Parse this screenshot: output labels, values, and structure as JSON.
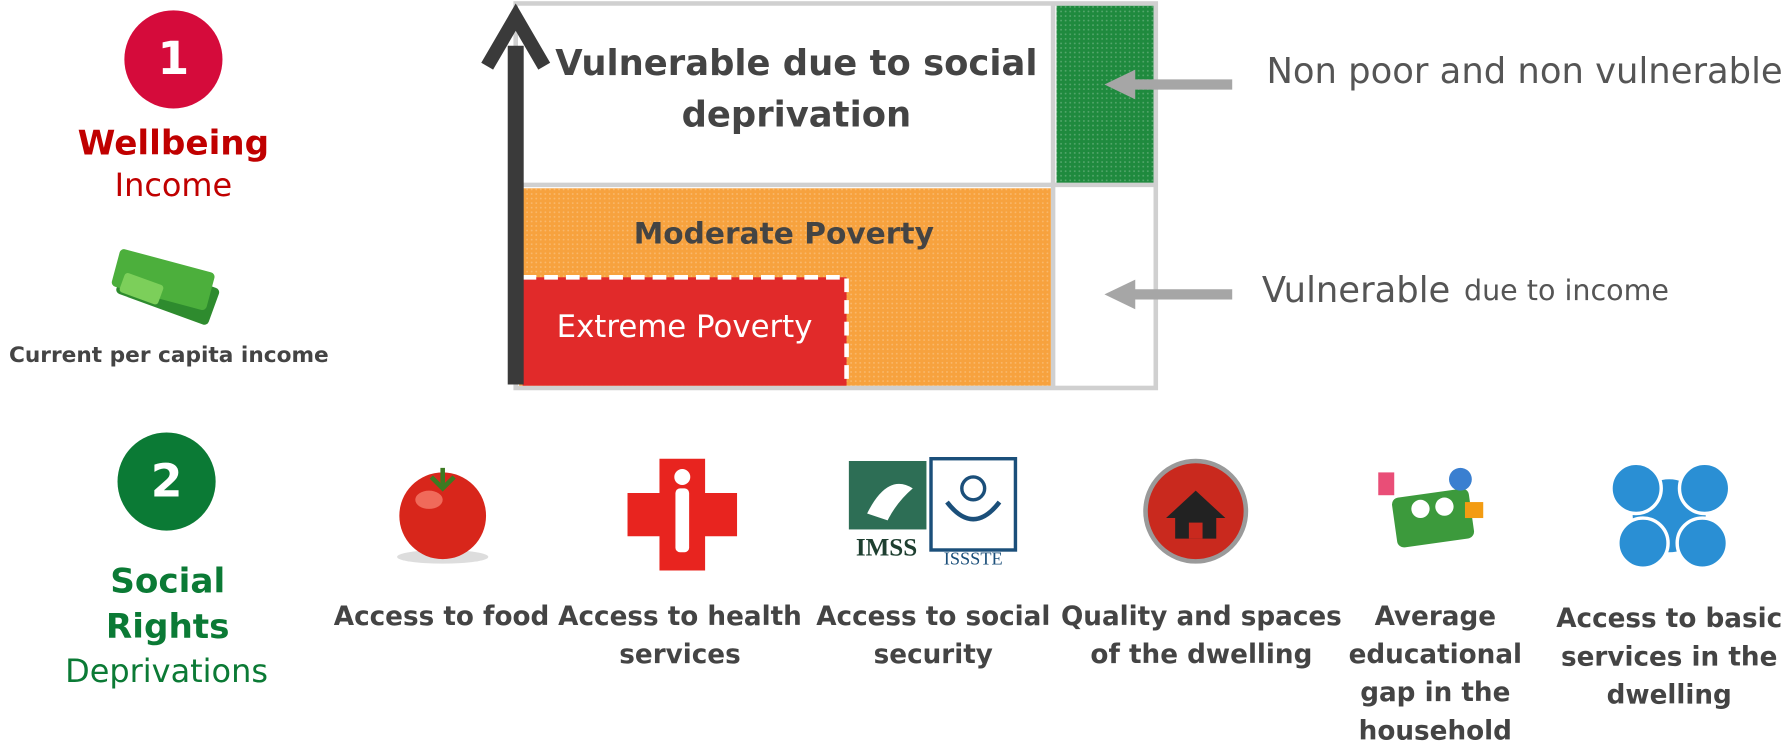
{
  "dimensions": [
    {
      "number": "1",
      "title": "Wellbeing",
      "subtitle": "Income",
      "caption": "Current per capita income"
    },
    {
      "number": "2",
      "title_lines": [
        "Social",
        "Rights"
      ],
      "subtitle": "Deprivations"
    }
  ],
  "regions": {
    "vulnerable_social": [
      "Vulnerable due to social",
      "deprivation"
    ],
    "moderate": "Moderate Poverty",
    "extreme": "Extreme Poverty",
    "non_poor": "Non poor and non vulnerable",
    "vulnerable_income": {
      "main": "Vulnerable",
      "rest": "due to income"
    }
  },
  "deprivations": [
    [
      "Access to food"
    ],
    [
      "Access to health",
      "services"
    ],
    [
      "Access to social",
      "security"
    ],
    [
      "Quality and spaces",
      "of the dwelling"
    ],
    [
      "Average",
      "educational",
      "gap in the",
      "household"
    ],
    [
      "Access to basic",
      "services in the",
      "dwelling"
    ]
  ],
  "logos": [
    "IMSS",
    "ISSSTE"
  ]
}
